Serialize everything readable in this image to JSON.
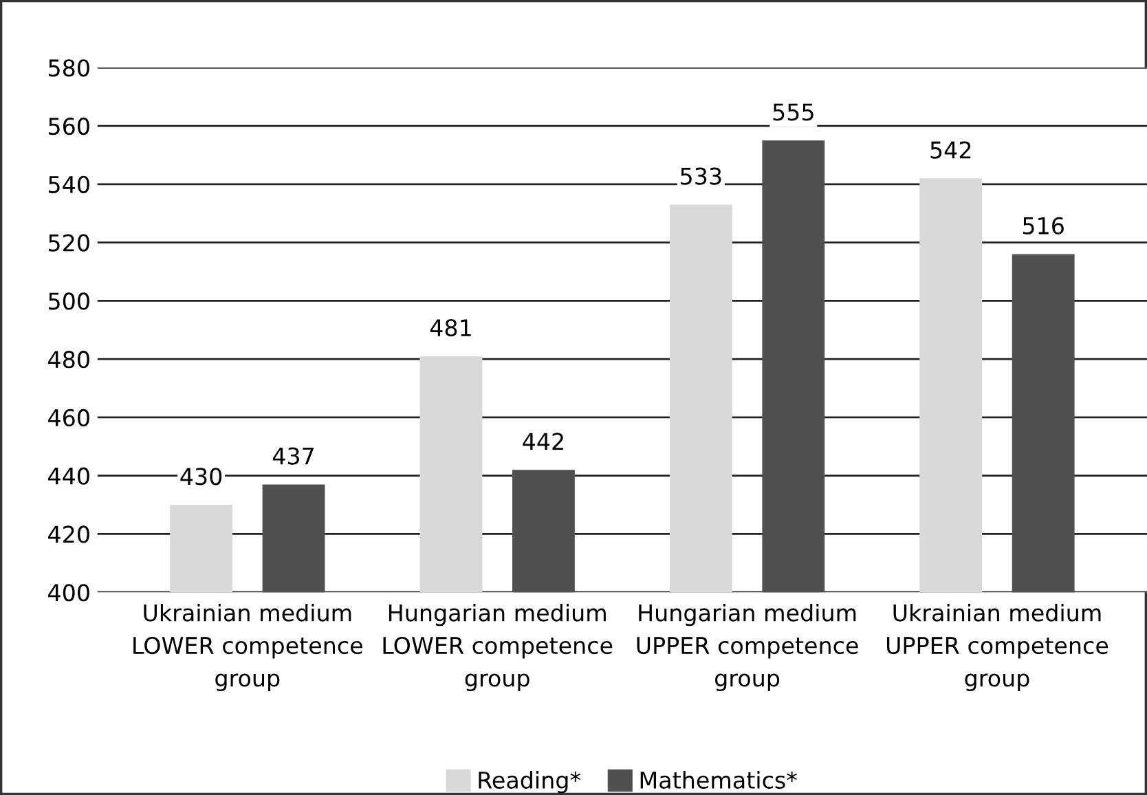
{
  "chart_data": {
    "type": "bar",
    "categories": [
      "Ukrainian medium\nLOWER competence\ngroup",
      "Hungarian medium\nLOWER competence\ngroup",
      "Hungarian medium\nUPPER competence\ngroup",
      "Ukrainian medium\nUPPER competence\ngroup"
    ],
    "series": [
      {
        "name": "Reading*",
        "color": "#d9d9d9",
        "values": [
          430,
          481,
          533,
          542
        ]
      },
      {
        "name": "Mathematics*",
        "color": "#505050",
        "values": [
          437,
          442,
          555,
          516
        ]
      }
    ],
    "ylim": [
      400,
      580
    ],
    "yticks": [
      400,
      420,
      440,
      460,
      480,
      500,
      520,
      540,
      560,
      580
    ],
    "grid": "y",
    "legend": "bottom",
    "data_labels": true
  }
}
